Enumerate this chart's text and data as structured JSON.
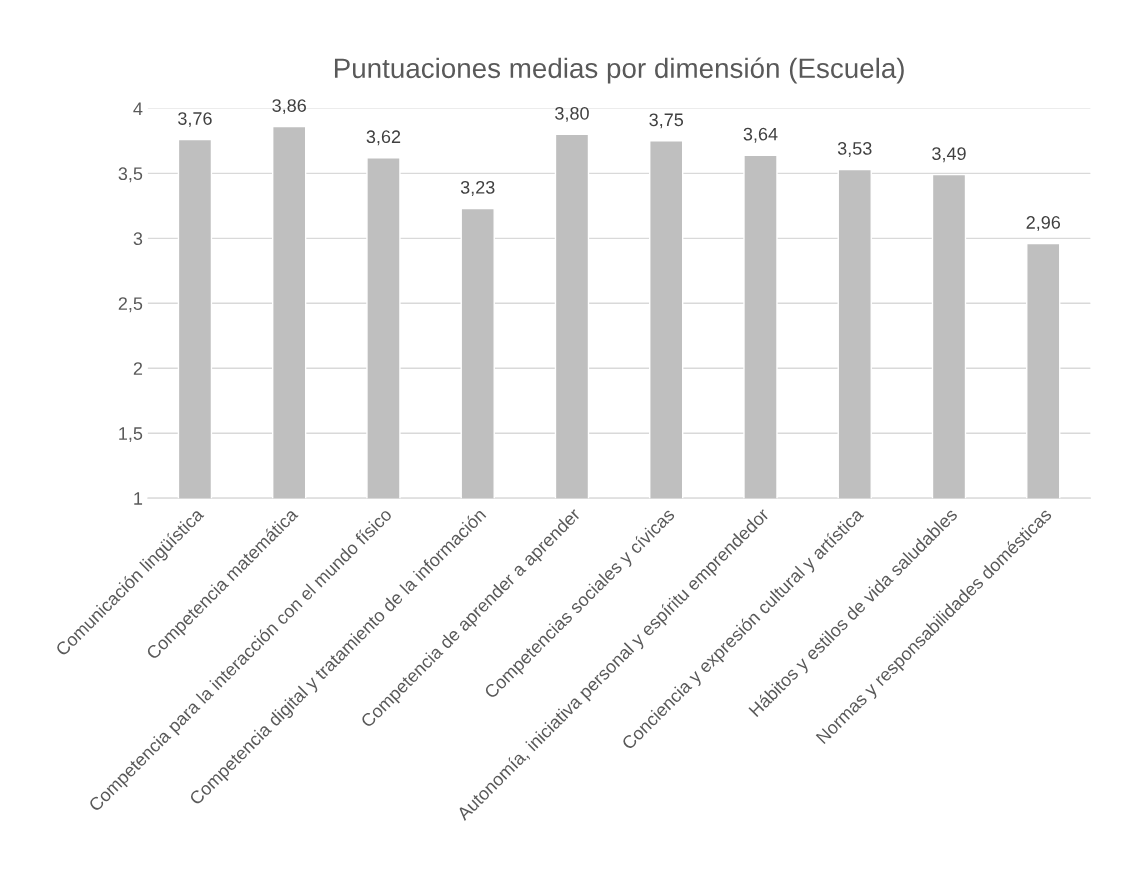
{
  "chart_data": {
    "type": "bar",
    "title": "Puntuaciones medias por dimensión (Escuela)",
    "categories": [
      "Comunicación lingüística",
      "Competencia matemática",
      "Competencia para la interacción con el mundo físico",
      "Competencia digital y tratamiento de la información",
      "Competencia de aprender a aprender",
      "Competencias sociales y cívicas",
      "Autonomía, iniciativa personal y espíritu emprendedor",
      "Conciencia y expresión cultural y artística",
      "Hábitos y estilos de vida saludables",
      "Normas y responsabilidades domésticas"
    ],
    "values": [
      3.76,
      3.86,
      3.62,
      3.23,
      3.8,
      3.75,
      3.64,
      3.53,
      3.49,
      2.96
    ],
    "value_labels": [
      "3,76",
      "3,86",
      "3,62",
      "3,23",
      "3,80",
      "3,75",
      "3,64",
      "3,53",
      "3,49",
      "2,96"
    ],
    "color": "#bfbfbf",
    "ylim": [
      1,
      4
    ],
    "yticks": [
      1,
      {
        "value": 1.5,
        "label": "1,5"
      },
      2,
      {
        "value": 2.5,
        "label": "2,5"
      },
      3,
      {
        "value": 3.5,
        "label": "3,5"
      },
      4
    ],
    "grid": "y"
  }
}
